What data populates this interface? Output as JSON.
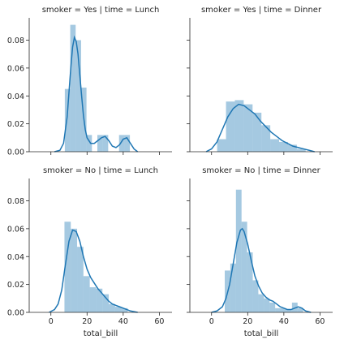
{
  "chart_data": {
    "type": "facet_grid",
    "colors": {
      "bar": "#1f77b4",
      "line": "#1f77b4",
      "axis": "#262626"
    },
    "xlabel": "total_bill",
    "x_ticks": [
      0,
      20,
      40,
      60
    ],
    "y_ticks": [
      0.0,
      0.02,
      0.04,
      0.06,
      0.08
    ],
    "y_tick_labels": [
      "0.00",
      "0.02",
      "0.04",
      "0.06",
      "0.08"
    ],
    "xlim": [
      -12,
      67
    ],
    "ylim": [
      0,
      0.096
    ],
    "shared_axes": true,
    "grid": false,
    "panels": [
      {
        "title": "smoker = Yes | time = Lunch",
        "bins": [
          {
            "x0": 7.7,
            "x1": 10.7,
            "h": 0.045
          },
          {
            "x0": 10.7,
            "x1": 13.7,
            "h": 0.091
          },
          {
            "x0": 13.7,
            "x1": 16.7,
            "h": 0.08
          },
          {
            "x0": 16.7,
            "x1": 19.7,
            "h": 0.046
          },
          {
            "x0": 19.7,
            "x1": 22.7,
            "h": 0.012
          },
          {
            "x0": 22.7,
            "x1": 25.7,
            "h": 0.0
          },
          {
            "x0": 25.7,
            "x1": 28.7,
            "h": 0.012
          },
          {
            "x0": 28.7,
            "x1": 31.7,
            "h": 0.012
          },
          {
            "x0": 31.7,
            "x1": 34.7,
            "h": 0.0
          },
          {
            "x0": 34.7,
            "x1": 37.7,
            "h": 0.0
          },
          {
            "x0": 37.7,
            "x1": 40.7,
            "h": 0.012
          },
          {
            "x0": 40.7,
            "x1": 43.7,
            "h": 0.012
          }
        ],
        "kde": {
          "x": [
            2,
            5,
            7,
            9,
            11,
            12,
            13,
            14,
            15,
            16,
            17,
            18,
            19,
            20,
            22,
            24,
            26,
            28,
            30,
            32,
            34,
            36,
            38,
            40,
            42,
            44,
            46,
            48
          ],
          "y": [
            0.0,
            0.001,
            0.006,
            0.025,
            0.06,
            0.075,
            0.082,
            0.079,
            0.07,
            0.055,
            0.04,
            0.026,
            0.016,
            0.01,
            0.006,
            0.006,
            0.008,
            0.01,
            0.011,
            0.008,
            0.004,
            0.003,
            0.005,
            0.009,
            0.01,
            0.006,
            0.002,
            0.0
          ]
        }
      },
      {
        "title": "smoker = Yes | time = Dinner",
        "bins": [
          {
            "x0": 3.1,
            "x1": 8.0,
            "h": 0.009
          },
          {
            "x0": 8.0,
            "x1": 12.9,
            "h": 0.036
          },
          {
            "x0": 12.9,
            "x1": 17.8,
            "h": 0.037
          },
          {
            "x0": 17.8,
            "x1": 22.7,
            "h": 0.034
          },
          {
            "x0": 22.7,
            "x1": 27.6,
            "h": 0.028
          },
          {
            "x0": 27.6,
            "x1": 32.5,
            "h": 0.019
          },
          {
            "x0": 32.5,
            "x1": 37.4,
            "h": 0.009
          },
          {
            "x0": 37.4,
            "x1": 42.3,
            "h": 0.007
          },
          {
            "x0": 42.3,
            "x1": 47.2,
            "h": 0.005
          },
          {
            "x0": 47.2,
            "x1": 52.1,
            "h": 0.002
          }
        ],
        "kde": {
          "x": [
            -3,
            0,
            3,
            6,
            9,
            12,
            15,
            18,
            21,
            24,
            27,
            30,
            33,
            36,
            39,
            42,
            45,
            48,
            51,
            54,
            57
          ],
          "y": [
            0.0,
            0.002,
            0.007,
            0.016,
            0.025,
            0.031,
            0.034,
            0.033,
            0.03,
            0.027,
            0.022,
            0.018,
            0.014,
            0.011,
            0.008,
            0.006,
            0.004,
            0.003,
            0.002,
            0.001,
            0.0
          ]
        }
      },
      {
        "title": "smoker = No | time = Lunch",
        "bins": [
          {
            "x0": 7.5,
            "x1": 11.0,
            "h": 0.065
          },
          {
            "x0": 11.0,
            "x1": 14.5,
            "h": 0.06
          },
          {
            "x0": 14.5,
            "x1": 18.0,
            "h": 0.047
          },
          {
            "x0": 18.0,
            "x1": 21.5,
            "h": 0.026
          },
          {
            "x0": 21.5,
            "x1": 25.0,
            "h": 0.018
          },
          {
            "x0": 25.0,
            "x1": 28.5,
            "h": 0.017
          },
          {
            "x0": 28.5,
            "x1": 32.0,
            "h": 0.013
          },
          {
            "x0": 32.0,
            "x1": 35.5,
            "h": 0.006
          },
          {
            "x0": 35.5,
            "x1": 39.0,
            "h": 0.004
          },
          {
            "x0": 39.0,
            "x1": 42.5,
            "h": 0.003
          }
        ],
        "kde": {
          "x": [
            -1,
            2,
            4,
            6,
            8,
            10,
            12,
            14,
            16,
            18,
            20,
            22,
            24,
            26,
            28,
            30,
            32,
            34,
            36,
            38,
            40,
            42,
            44,
            46,
            48
          ],
          "y": [
            0.0,
            0.002,
            0.006,
            0.016,
            0.034,
            0.051,
            0.059,
            0.058,
            0.051,
            0.04,
            0.031,
            0.025,
            0.021,
            0.017,
            0.014,
            0.011,
            0.008,
            0.006,
            0.005,
            0.004,
            0.003,
            0.002,
            0.001,
            0.0005,
            0.0
          ]
        }
      },
      {
        "title": "smoker = No | time = Dinner",
        "bins": [
          {
            "x0": 7.3,
            "x1": 10.4,
            "h": 0.03
          },
          {
            "x0": 10.4,
            "x1": 13.5,
            "h": 0.035
          },
          {
            "x0": 13.5,
            "x1": 16.6,
            "h": 0.088
          },
          {
            "x0": 16.6,
            "x1": 19.7,
            "h": 0.065
          },
          {
            "x0": 19.7,
            "x1": 22.8,
            "h": 0.043
          },
          {
            "x0": 22.8,
            "x1": 25.9,
            "h": 0.023
          },
          {
            "x0": 25.9,
            "x1": 29.0,
            "h": 0.013
          },
          {
            "x0": 29.0,
            "x1": 32.1,
            "h": 0.01
          },
          {
            "x0": 32.1,
            "x1": 35.2,
            "h": 0.007
          },
          {
            "x0": 35.2,
            "x1": 38.3,
            "h": 0.003
          },
          {
            "x0": 38.3,
            "x1": 41.4,
            "h": 0.003
          },
          {
            "x0": 41.4,
            "x1": 44.5,
            "h": 0.002
          },
          {
            "x0": 44.5,
            "x1": 47.6,
            "h": 0.007
          },
          {
            "x0": 47.6,
            "x1": 50.7,
            "h": 0.003
          }
        ],
        "kde": {
          "x": [
            0,
            3,
            6,
            8,
            10,
            12,
            14,
            16,
            17,
            18,
            20,
            22,
            24,
            26,
            28,
            30,
            32,
            34,
            36,
            38,
            40,
            42,
            44,
            46,
            48,
            50,
            52,
            55
          ],
          "y": [
            0.0,
            0.001,
            0.004,
            0.01,
            0.02,
            0.035,
            0.05,
            0.059,
            0.06,
            0.058,
            0.049,
            0.037,
            0.026,
            0.019,
            0.014,
            0.011,
            0.009,
            0.008,
            0.006,
            0.004,
            0.003,
            0.002,
            0.002,
            0.003,
            0.004,
            0.003,
            0.001,
            0.0
          ]
        }
      }
    ]
  }
}
